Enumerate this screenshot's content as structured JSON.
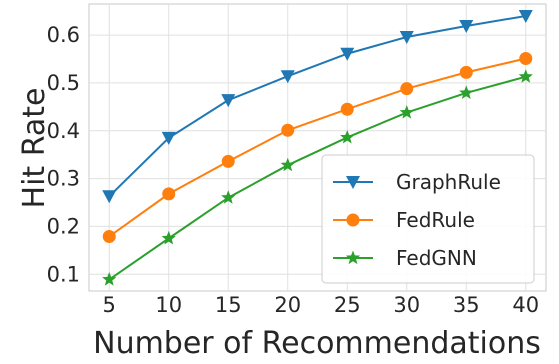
{
  "chart_data": {
    "type": "line",
    "title": "",
    "xlabel": "Number of Recommendations",
    "ylabel": "Hit Rate",
    "x": [
      5,
      10,
      15,
      20,
      25,
      30,
      35,
      40
    ],
    "xticks": [
      "5",
      "10",
      "15",
      "20",
      "25",
      "30",
      "35",
      "40"
    ],
    "yticks": [
      "0.1",
      "0.2",
      "0.3",
      "0.4",
      "0.5",
      "0.6"
    ],
    "ytick_values": [
      0.1,
      0.2,
      0.3,
      0.4,
      0.5,
      0.6
    ],
    "xlim": [
      3.3,
      41.7
    ],
    "ylim": [
      0.065,
      0.665
    ],
    "grid": true,
    "legend_position": "lower-right",
    "series": [
      {
        "name": "GraphRule",
        "color": "#1f77b4",
        "marker": "triangle-down",
        "values": [
          0.263,
          0.385,
          0.464,
          0.514,
          0.561,
          0.596,
          0.619,
          0.64
        ]
      },
      {
        "name": "FedRule",
        "color": "#ff7f0e",
        "marker": "circle",
        "values": [
          0.179,
          0.268,
          0.336,
          0.401,
          0.445,
          0.488,
          0.522,
          0.551
        ]
      },
      {
        "name": "FedGNN",
        "color": "#2ca02c",
        "marker": "star",
        "values": [
          0.089,
          0.175,
          0.26,
          0.328,
          0.386,
          0.438,
          0.479,
          0.513
        ]
      }
    ]
  }
}
